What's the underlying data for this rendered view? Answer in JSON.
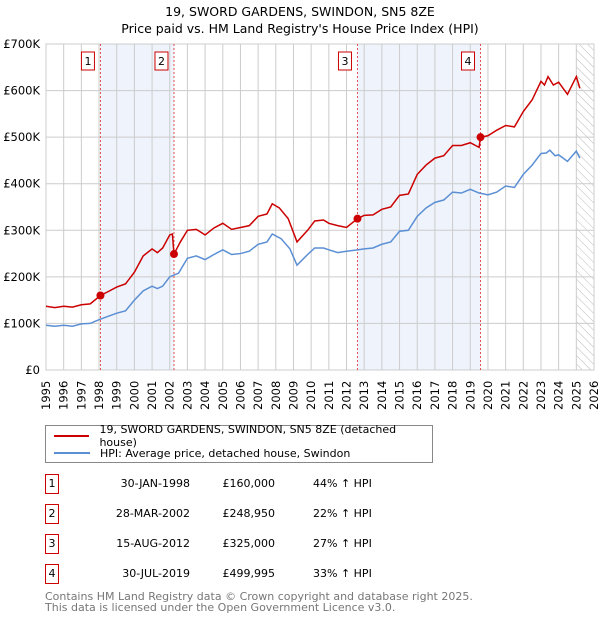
{
  "title": "19, SWORD GARDENS, SWINDON, SN5 8ZE",
  "subtitle": "Price paid vs. HM Land Registry's House Price Index (HPI)",
  "chart_data": {
    "type": "line",
    "title": "19, SWORD GARDENS, SWINDON, SN5 8ZE",
    "subtitle": "Price paid vs. HM Land Registry's House Price Index (HPI)",
    "xlim": [
      1995,
      2026
    ],
    "ylim": [
      0,
      700000
    ],
    "x_ticks": [
      1995,
      1996,
      1997,
      1998,
      1999,
      2000,
      2001,
      2002,
      2003,
      2004,
      2005,
      2006,
      2007,
      2008,
      2009,
      2010,
      2011,
      2012,
      2013,
      2014,
      2015,
      2016,
      2017,
      2018,
      2019,
      2020,
      2021,
      2022,
      2023,
      2024,
      2025,
      2026
    ],
    "y_ticks": [
      {
        "v": 0,
        "label": "£0"
      },
      {
        "v": 100000,
        "label": "£100K"
      },
      {
        "v": 200000,
        "label": "£200K"
      },
      {
        "v": 300000,
        "label": "£300K"
      },
      {
        "v": 400000,
        "label": "£400K"
      },
      {
        "v": 500000,
        "label": "£500K"
      },
      {
        "v": 600000,
        "label": "£600K"
      },
      {
        "v": 700000,
        "label": "£700K"
      }
    ],
    "grid": true,
    "shaded_ranges": [
      [
        1998.08,
        2002.24
      ],
      [
        2012.62,
        2019.58
      ]
    ],
    "forecast_hatch_from": 2025.0,
    "series": [
      {
        "name": "19, SWORD GARDENS, SWINDON, SN5 8ZE (detached house)",
        "color": "#cc0000",
        "points": [
          [
            1995,
            137
          ],
          [
            1995.5,
            134
          ],
          [
            1996,
            137
          ],
          [
            1996.5,
            135
          ],
          [
            1997,
            140
          ],
          [
            1997.5,
            142
          ],
          [
            1998.08,
            160
          ],
          [
            1998.5,
            168
          ],
          [
            1999,
            178
          ],
          [
            1999.5,
            185
          ],
          [
            2000,
            210
          ],
          [
            2000.5,
            245
          ],
          [
            2001,
            260
          ],
          [
            2001.3,
            252
          ],
          [
            2001.6,
            262
          ],
          [
            2002,
            290
          ],
          [
            2002.15,
            292
          ],
          [
            2002.24,
            249
          ],
          [
            2002.6,
            275
          ],
          [
            2003,
            300
          ],
          [
            2003.5,
            302
          ],
          [
            2003.8,
            295
          ],
          [
            2004,
            290
          ],
          [
            2004.5,
            305
          ],
          [
            2005,
            315
          ],
          [
            2005.5,
            302
          ],
          [
            2006,
            306
          ],
          [
            2006.5,
            310
          ],
          [
            2007,
            330
          ],
          [
            2007.5,
            335
          ],
          [
            2007.8,
            357
          ],
          [
            2008.2,
            348
          ],
          [
            2008.7,
            325
          ],
          [
            2009.2,
            275
          ],
          [
            2009.8,
            300
          ],
          [
            2010.2,
            320
          ],
          [
            2010.7,
            322
          ],
          [
            2011,
            315
          ],
          [
            2011.5,
            310
          ],
          [
            2012,
            306
          ],
          [
            2012.62,
            325
          ],
          [
            2013,
            332
          ],
          [
            2013.5,
            333
          ],
          [
            2014,
            345
          ],
          [
            2014.5,
            350
          ],
          [
            2015,
            375
          ],
          [
            2015.5,
            378
          ],
          [
            2016,
            420
          ],
          [
            2016.5,
            440
          ],
          [
            2017,
            455
          ],
          [
            2017.5,
            460
          ],
          [
            2018,
            482
          ],
          [
            2018.5,
            482
          ],
          [
            2019,
            488
          ],
          [
            2019.5,
            478
          ],
          [
            2019.58,
            500
          ],
          [
            2020,
            503
          ],
          [
            2020.5,
            515
          ],
          [
            2021,
            525
          ],
          [
            2021.5,
            522
          ],
          [
            2022,
            555
          ],
          [
            2022.5,
            580
          ],
          [
            2023,
            620
          ],
          [
            2023.2,
            612
          ],
          [
            2023.4,
            630
          ],
          [
            2023.7,
            612
          ],
          [
            2024,
            618
          ],
          [
            2024.5,
            592
          ],
          [
            2025,
            630
          ],
          [
            2025.2,
            605
          ]
        ]
      },
      {
        "name": "HPI: Average price, detached house, Swindon",
        "color": "#5b8fd4",
        "points": [
          [
            1995,
            96
          ],
          [
            1995.5,
            94
          ],
          [
            1996,
            96
          ],
          [
            1996.5,
            94
          ],
          [
            1997,
            99
          ],
          [
            1997.5,
            100
          ],
          [
            1998,
            108
          ],
          [
            1998.5,
            115
          ],
          [
            1999,
            122
          ],
          [
            1999.5,
            127
          ],
          [
            2000,
            150
          ],
          [
            2000.5,
            170
          ],
          [
            2001,
            180
          ],
          [
            2001.3,
            175
          ],
          [
            2001.6,
            180
          ],
          [
            2002,
            200
          ],
          [
            2002.5,
            208
          ],
          [
            2003,
            240
          ],
          [
            2003.5,
            245
          ],
          [
            2004,
            237
          ],
          [
            2004.5,
            248
          ],
          [
            2005,
            258
          ],
          [
            2005.5,
            248
          ],
          [
            2006,
            250
          ],
          [
            2006.5,
            255
          ],
          [
            2007,
            270
          ],
          [
            2007.5,
            275
          ],
          [
            2007.8,
            292
          ],
          [
            2008.3,
            282
          ],
          [
            2008.8,
            260
          ],
          [
            2009.2,
            225
          ],
          [
            2009.8,
            248
          ],
          [
            2010.2,
            262
          ],
          [
            2010.7,
            262
          ],
          [
            2011,
            258
          ],
          [
            2011.5,
            252
          ],
          [
            2012,
            255
          ],
          [
            2012.62,
            258
          ],
          [
            2013,
            260
          ],
          [
            2013.5,
            262
          ],
          [
            2014,
            270
          ],
          [
            2014.5,
            275
          ],
          [
            2015,
            298
          ],
          [
            2015.5,
            300
          ],
          [
            2016,
            330
          ],
          [
            2016.5,
            348
          ],
          [
            2017,
            360
          ],
          [
            2017.5,
            365
          ],
          [
            2018,
            382
          ],
          [
            2018.5,
            380
          ],
          [
            2019,
            388
          ],
          [
            2019.5,
            380
          ],
          [
            2020,
            376
          ],
          [
            2020.5,
            382
          ],
          [
            2021,
            395
          ],
          [
            2021.5,
            392
          ],
          [
            2022,
            420
          ],
          [
            2022.5,
            440
          ],
          [
            2023,
            465
          ],
          [
            2023.3,
            466
          ],
          [
            2023.5,
            472
          ],
          [
            2023.8,
            460
          ],
          [
            2024,
            462
          ],
          [
            2024.5,
            448
          ],
          [
            2025,
            470
          ],
          [
            2025.2,
            455
          ]
        ]
      }
    ],
    "y_unit_multiplier": 1000,
    "sales": [
      {
        "label": "1",
        "x": 2002.24,
        "xd": 1998.08,
        "y": 160000
      },
      {
        "label": "2",
        "xd": 2002.24,
        "y": 248950
      },
      {
        "label": "3",
        "xd": 2012.62,
        "y": 325000
      },
      {
        "label": "4",
        "xd": 2019.58,
        "y": 499995
      }
    ]
  },
  "legend": {
    "items": [
      "19, SWORD GARDENS, SWINDON, SN5 8ZE (detached house)",
      "HPI: Average price, detached house, Swindon"
    ]
  },
  "table": [
    {
      "num": "1",
      "date": "30-JAN-1998",
      "price": "£160,000",
      "hpi": "44% ↑ HPI"
    },
    {
      "num": "2",
      "date": "28-MAR-2002",
      "price": "£248,950",
      "hpi": "22% ↑ HPI"
    },
    {
      "num": "3",
      "date": "15-AUG-2012",
      "price": "£325,000",
      "hpi": "27% ↑ HPI"
    },
    {
      "num": "4",
      "date": "30-JUL-2019",
      "price": "£499,995",
      "hpi": "33% ↑ HPI"
    }
  ],
  "footer": [
    "Contains HM Land Registry data © Crown copyright and database right 2025.",
    "This data is licensed under the Open Government Licence v3.0."
  ]
}
